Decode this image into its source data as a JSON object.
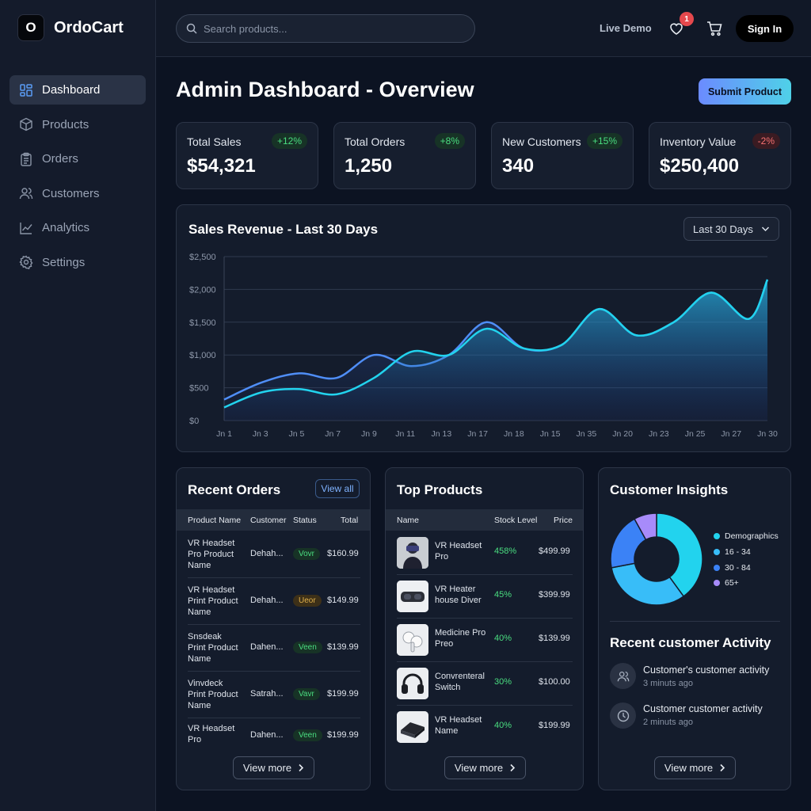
{
  "app": {
    "logo_letter": "O",
    "name": "OrdoCart"
  },
  "sidebar": {
    "items": [
      {
        "label": "Dashboard",
        "icon": "dashboard-icon",
        "active": true
      },
      {
        "label": "Products",
        "icon": "box-icon"
      },
      {
        "label": "Orders",
        "icon": "clipboard-icon"
      },
      {
        "label": "Customers",
        "icon": "users-icon"
      },
      {
        "label": "Analytics",
        "icon": "analytics-icon"
      },
      {
        "label": "Settings",
        "icon": "gear-icon"
      }
    ]
  },
  "header": {
    "search_placeholder": "Search products...",
    "live_demo": "Live Demo",
    "wishlist_count": "1",
    "sign_in": "Sign In"
  },
  "page": {
    "title": "Admin Dashboard - Overview",
    "submit_label": "Submit Product"
  },
  "stats": [
    {
      "label": "Total Sales",
      "value": "$54,321",
      "change": "+12%",
      "trend": "up"
    },
    {
      "label": "Total Orders",
      "value": "1,250",
      "change": "+8%",
      "trend": "up"
    },
    {
      "label": "New Customers",
      "value": "340",
      "change": "+15%",
      "trend": "up"
    },
    {
      "label": "Inventory Value",
      "value": "$250,400",
      "change": "-2%",
      "trend": "down"
    }
  ],
  "sales_chart": {
    "title": "Sales Revenue - Last 30 Days",
    "range": "Last 30 Days"
  },
  "chart_data": {
    "type": "area",
    "y_ticks": [
      "$2,500",
      "$2,000",
      "$1,500",
      "$1,000",
      "$500",
      "$0"
    ],
    "ylim": [
      0,
      2500
    ],
    "x_ticks": [
      "Jn 1",
      "Jn 3",
      "Jn 5",
      "Jn 7",
      "Jn 9",
      "Jn 11",
      "Jn 13",
      "Jn 17",
      "Jn 18",
      "Jn 15",
      "Jn 35",
      "Jn 20",
      "Jn 23",
      "Jn 25",
      "Jn 27",
      "Jn 30"
    ],
    "x": [
      1,
      3,
      5,
      7,
      9,
      11,
      13,
      15,
      17,
      19,
      21,
      23,
      25,
      27,
      29,
      30
    ],
    "series": [
      {
        "values": [
          320,
          580,
          720,
          650,
          1000,
          830,
          1000,
          1500,
          1100,
          1150,
          1700,
          1300,
          1500,
          1950,
          1550,
          2150
        ],
        "color": "#22d3ee"
      },
      {
        "values": [
          200,
          430,
          480,
          400,
          650,
          1050,
          1000,
          1400,
          1100,
          1150,
          1700,
          1300,
          1500,
          1950,
          1550,
          2150
        ],
        "color": "#38bdf8"
      }
    ],
    "grid": true
  },
  "recent_orders": {
    "title": "Recent Orders",
    "view_all": "View all",
    "columns": [
      "Product Name",
      "Customer",
      "Status",
      "Total"
    ],
    "rows": [
      {
        "name": [
          "VR Headset",
          "Pro Product",
          "Name"
        ],
        "customer": "Dehah...",
        "status": "Vovr",
        "status_color": "green",
        "total": "$160.99"
      },
      {
        "name": [
          "VR Headset",
          "Print Product",
          "Name"
        ],
        "customer": "Dehah...",
        "status": "Ueor",
        "status_color": "yellow",
        "total": "$149.99"
      },
      {
        "name": [
          "Snsdeak",
          "Print Product",
          "Name"
        ],
        "customer": "Dahen...",
        "status": "Veen",
        "status_color": "green",
        "total": "$139.99"
      },
      {
        "name": [
          "Vinvdeck",
          "Print Product",
          "Name"
        ],
        "customer": "Satrah...",
        "status": "Vavr",
        "status_color": "green",
        "total": "$199.99"
      },
      {
        "name": [
          "VR Headset",
          "Pro"
        ],
        "customer": "Dahen...",
        "status": "Veen",
        "status_color": "green",
        "total": "$199.99"
      }
    ],
    "view_more": "View more"
  },
  "top_products": {
    "title": "Top Products",
    "columns": [
      "Name",
      "Stock Level",
      "Price"
    ],
    "rows": [
      {
        "name": [
          "VR Headset",
          "Pro"
        ],
        "stock": "458%",
        "price": "$499.99",
        "thumb": "vr-headset-person-icon"
      },
      {
        "name": [
          "VR Heater",
          "house Diver"
        ],
        "stock": "45%",
        "price": "$399.99",
        "thumb": "vr-goggles-icon"
      },
      {
        "name": [
          "Medicine Pro",
          "Preo"
        ],
        "stock": "40%",
        "price": "$139.99",
        "thumb": "earbuds-icon"
      },
      {
        "name": [
          "Convrenteral",
          "Switch"
        ],
        "stock": "30%",
        "price": "$100.00",
        "thumb": "headphones-icon"
      },
      {
        "name": [
          "VR Headset",
          "Name"
        ],
        "stock": "40%",
        "price": "$199.99",
        "thumb": "console-icon"
      }
    ],
    "view_more": "View more"
  },
  "customer_insights": {
    "title": "Customer Insights",
    "legend": [
      {
        "label": "Demographics",
        "color": "#22d3ee"
      },
      {
        "label": "16 - 34",
        "color": "#38bdf8"
      },
      {
        "label": "30 - 84",
        "color": "#3b82f6"
      },
      {
        "label": "65+",
        "color": "#a78bfa"
      }
    ],
    "donut": [
      {
        "value": 40,
        "color": "#22d3ee"
      },
      {
        "value": 32,
        "color": "#38bdf8"
      },
      {
        "value": 20,
        "color": "#3b82f6"
      },
      {
        "value": 8,
        "color": "#a78bfa"
      }
    ],
    "activity_title": "Recent customer Activity",
    "activity": [
      {
        "text": "Customer's customer activity",
        "time": "3 minuts ago",
        "icon": "users-icon"
      },
      {
        "text": "Customer customer activity",
        "time": "2 minuts ago",
        "icon": "clock-icon"
      }
    ],
    "view_more": "View more"
  }
}
